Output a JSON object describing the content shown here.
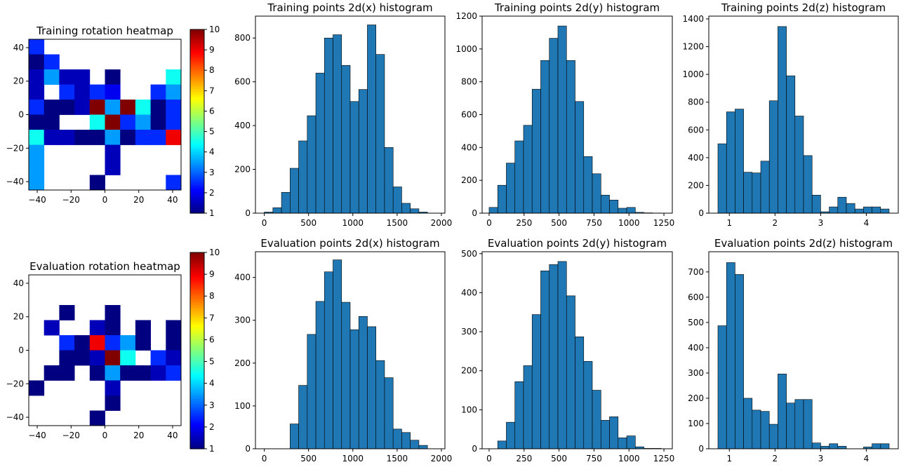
{
  "chart_data": [
    {
      "type": "heatmap",
      "title": "Training rotation heatmap",
      "xlim": [
        -45,
        45
      ],
      "ylim": [
        -45,
        45
      ],
      "xticks": [
        -40,
        -20,
        0,
        20,
        40
      ],
      "yticks": [
        -40,
        -20,
        0,
        20,
        40
      ],
      "bin_edges": [
        -45,
        -36,
        -27,
        -18,
        -9,
        0,
        9,
        18,
        27,
        36,
        45
      ],
      "cells": [
        [
          -45,
          36,
          2.5
        ],
        [
          -45,
          27,
          1
        ],
        [
          -36,
          27,
          2.5
        ],
        [
          -45,
          18,
          1.5
        ],
        [
          -36,
          18,
          3.5
        ],
        [
          -27,
          18,
          1.5
        ],
        [
          -18,
          18,
          1.5
        ],
        [
          0,
          18,
          1
        ],
        [
          36,
          18,
          4.5
        ],
        [
          -45,
          9,
          1.5
        ],
        [
          -27,
          9,
          2.5
        ],
        [
          -18,
          9,
          1.5
        ],
        [
          -9,
          9,
          2.5
        ],
        [
          0,
          9,
          2
        ],
        [
          27,
          9,
          2.5
        ],
        [
          36,
          9,
          3.5
        ],
        [
          -45,
          0,
          2.5
        ],
        [
          -36,
          0,
          1
        ],
        [
          -27,
          0,
          1
        ],
        [
          -18,
          0,
          1.5
        ],
        [
          -9,
          0,
          10
        ],
        [
          0,
          0,
          3.5
        ],
        [
          9,
          0,
          10
        ],
        [
          18,
          0,
          4.5
        ],
        [
          27,
          0,
          1
        ],
        [
          36,
          0,
          2.5
        ],
        [
          -45,
          -9,
          1
        ],
        [
          -36,
          -9,
          1
        ],
        [
          -9,
          -9,
          4.5
        ],
        [
          0,
          -9,
          10
        ],
        [
          9,
          -9,
          2.5
        ],
        [
          18,
          -9,
          3.5
        ],
        [
          27,
          -9,
          1
        ],
        [
          36,
          -9,
          2.5
        ],
        [
          -45,
          -18,
          4.5
        ],
        [
          -36,
          -18,
          1.5
        ],
        [
          -27,
          -18,
          1.5
        ],
        [
          -18,
          -18,
          1
        ],
        [
          -9,
          -18,
          1
        ],
        [
          0,
          -18,
          3.5
        ],
        [
          9,
          -18,
          1
        ],
        [
          18,
          -18,
          2.5
        ],
        [
          27,
          -18,
          2.5
        ],
        [
          36,
          -18,
          9
        ],
        [
          -45,
          -27,
          3.5
        ],
        [
          0,
          -27,
          1.5
        ],
        [
          -45,
          -36,
          3.5
        ],
        [
          0,
          -36,
          1.5
        ],
        [
          -45,
          -45,
          3.5
        ],
        [
          -9,
          -45,
          1
        ],
        [
          36,
          -45,
          2.5
        ]
      ],
      "colorbar": {
        "range": [
          1,
          10
        ],
        "ticks": [
          1,
          2,
          3,
          4,
          5,
          6,
          7,
          8,
          9,
          10
        ]
      }
    },
    {
      "type": "histogram",
      "title": "Training points 2d(x) histogram",
      "xlim": [
        -100,
        2040
      ],
      "ylim": [
        0,
        900
      ],
      "xticks": [
        0,
        500,
        1000,
        1500,
        2000
      ],
      "yticks": [
        0,
        200,
        400,
        600,
        800
      ],
      "bin_start": 0,
      "bin_width": 97,
      "values": [
        5,
        25,
        95,
        205,
        330,
        445,
        640,
        800,
        815,
        675,
        510,
        565,
        860,
        725,
        300,
        120,
        45,
        20,
        5
      ]
    },
    {
      "type": "histogram",
      "title": "Training points 2d(y) histogram",
      "xlim": [
        -50,
        1310
      ],
      "ylim": [
        0,
        1200
      ],
      "xticks": [
        0,
        250,
        500,
        750,
        1000,
        1250
      ],
      "yticks": [
        0,
        200,
        400,
        600,
        800,
        1000,
        1200
      ],
      "bin_start": 0,
      "bin_width": 61.5,
      "values": [
        35,
        170,
        305,
        440,
        535,
        755,
        930,
        1065,
        1140,
        930,
        680,
        345,
        240,
        110,
        80,
        30,
        35,
        5,
        2,
        1
      ]
    },
    {
      "type": "histogram",
      "title": "Training points 2d(z) histogram",
      "xlim": [
        0.55,
        4.7
      ],
      "ylim": [
        0,
        1420
      ],
      "xticks": [
        1,
        2,
        3,
        4
      ],
      "yticks": [
        0,
        200,
        400,
        600,
        800,
        1000,
        1200,
        1400
      ],
      "bin_start": 0.75,
      "bin_width": 0.1875,
      "values": [
        500,
        730,
        750,
        295,
        290,
        375,
        810,
        1345,
        990,
        700,
        415,
        130,
        10,
        45,
        115,
        70,
        30,
        45,
        45,
        30
      ]
    },
    {
      "type": "heatmap",
      "title": "Evaluation rotation heatmap",
      "xlim": [
        -45,
        45
      ],
      "ylim": [
        -45,
        45
      ],
      "xticks": [
        -40,
        -20,
        0,
        20,
        40
      ],
      "yticks": [
        -40,
        -20,
        0,
        20,
        40
      ],
      "bin_edges": [
        -45,
        -36,
        -27,
        -18,
        -9,
        0,
        9,
        18,
        27,
        36,
        45
      ],
      "cells": [
        [
          -27,
          18,
          1
        ],
        [
          0,
          18,
          1
        ],
        [
          -36,
          9,
          1.5
        ],
        [
          -9,
          9,
          1.5
        ],
        [
          0,
          9,
          1
        ],
        [
          18,
          9,
          1
        ],
        [
          36,
          9,
          1
        ],
        [
          -27,
          0,
          2.5
        ],
        [
          -18,
          0,
          1
        ],
        [
          -9,
          0,
          9
        ],
        [
          0,
          0,
          2.5
        ],
        [
          9,
          0,
          3.5
        ],
        [
          18,
          0,
          1
        ],
        [
          36,
          0,
          1
        ],
        [
          -27,
          -9,
          1
        ],
        [
          -18,
          -9,
          1
        ],
        [
          -9,
          -9,
          1.5
        ],
        [
          0,
          -9,
          10
        ],
        [
          9,
          -9,
          4.5
        ],
        [
          27,
          -9,
          2.5
        ],
        [
          36,
          -9,
          1.5
        ],
        [
          -36,
          -18,
          1
        ],
        [
          -27,
          -18,
          1
        ],
        [
          -9,
          -18,
          1
        ],
        [
          0,
          -18,
          3.5
        ],
        [
          9,
          -18,
          1
        ],
        [
          18,
          -18,
          1
        ],
        [
          27,
          -18,
          1.5
        ],
        [
          36,
          -18,
          2.5
        ],
        [
          -45,
          -27,
          1
        ],
        [
          0,
          -27,
          1.5
        ],
        [
          0,
          -36,
          1
        ],
        [
          -9,
          -45,
          1
        ]
      ],
      "colorbar": {
        "range": [
          1,
          10
        ],
        "ticks": [
          1,
          2,
          3,
          4,
          5,
          6,
          7,
          8,
          9,
          10
        ]
      }
    },
    {
      "type": "histogram",
      "title": "Evaluation points 2d(x) histogram",
      "xlim": [
        -100,
        2040
      ],
      "ylim": [
        0,
        460
      ],
      "xticks": [
        0,
        500,
        1000,
        1500,
        2000
      ],
      "yticks": [
        0,
        100,
        200,
        300,
        400
      ],
      "bin_start": 0,
      "bin_width": 97,
      "values": [
        0,
        0,
        0,
        58,
        148,
        267,
        344,
        413,
        441,
        342,
        278,
        309,
        285,
        206,
        166,
        46,
        38,
        20,
        8
      ]
    },
    {
      "type": "histogram",
      "title": "Evaluation points 2d(y) histogram",
      "xlim": [
        -50,
        1310
      ],
      "ylim": [
        0,
        505
      ],
      "xticks": [
        0,
        250,
        500,
        750,
        1000,
        1250
      ],
      "yticks": [
        0,
        100,
        200,
        300,
        400,
        500
      ],
      "bin_start": 0,
      "bin_width": 61.5,
      "values": [
        0,
        20,
        68,
        172,
        213,
        344,
        456,
        472,
        480,
        392,
        287,
        224,
        150,
        73,
        82,
        28,
        33,
        5,
        1,
        1
      ]
    },
    {
      "type": "histogram",
      "title": "Evaluation points 2d(z) histogram",
      "xlim": [
        0.55,
        4.7
      ],
      "ylim": [
        0,
        780
      ],
      "xticks": [
        1,
        2,
        3,
        4
      ],
      "yticks": [
        0,
        100,
        200,
        300,
        400,
        500,
        600,
        700
      ],
      "bin_start": 0.75,
      "bin_width": 0.1875,
      "values": [
        487,
        737,
        690,
        200,
        153,
        148,
        97,
        296,
        181,
        195,
        195,
        23,
        10,
        20,
        10,
        0,
        0,
        7,
        20,
        20
      ]
    }
  ]
}
